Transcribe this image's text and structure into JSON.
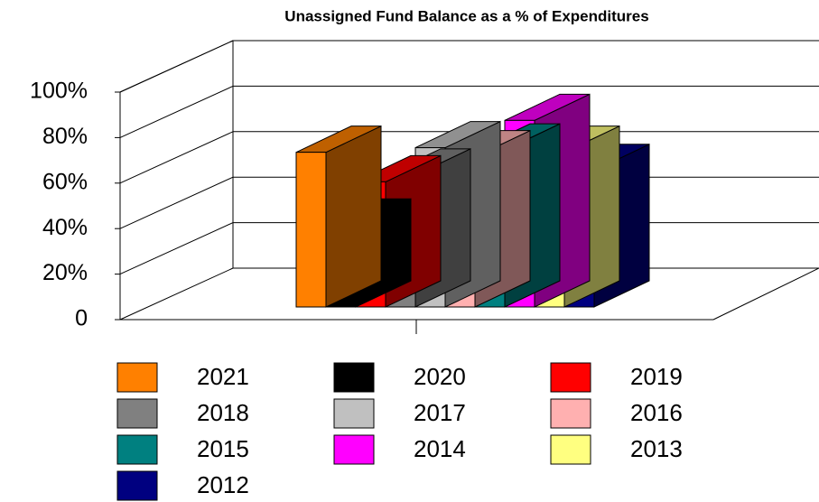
{
  "chart_data": {
    "type": "bar3d",
    "title": "Unassigned Fund Balance as a % of Expenditures",
    "series": [
      {
        "name": "2021",
        "color": "#ff8000",
        "values": [
          68
        ]
      },
      {
        "name": "2020",
        "color": "#000000",
        "values": [
          36
        ]
      },
      {
        "name": "2019",
        "color": "#ff0000",
        "values": [
          55
        ]
      },
      {
        "name": "2018",
        "color": "#808080",
        "values": [
          58
        ]
      },
      {
        "name": "2017",
        "color": "#c0c0c0",
        "values": [
          70
        ]
      },
      {
        "name": "2016",
        "color": "#ffb0b0",
        "values": [
          66
        ]
      },
      {
        "name": "2015",
        "color": "#008080",
        "values": [
          69
        ]
      },
      {
        "name": "2014",
        "color": "#ff00ff",
        "values": [
          82
        ]
      },
      {
        "name": "2013",
        "color": "#ffff80",
        "values": [
          68
        ]
      },
      {
        "name": "2012",
        "color": "#000080",
        "values": [
          60
        ]
      }
    ],
    "ylim": [
      0,
      100
    ],
    "yticks": [
      0,
      {
        "value": 20,
        "label": "20%"
      },
      {
        "value": 40,
        "label": "40%"
      },
      {
        "value": 60,
        "label": "60%"
      },
      {
        "value": 80,
        "label": "80%"
      },
      {
        "value": 100,
        "label": "100%"
      }
    ],
    "grid": true
  }
}
